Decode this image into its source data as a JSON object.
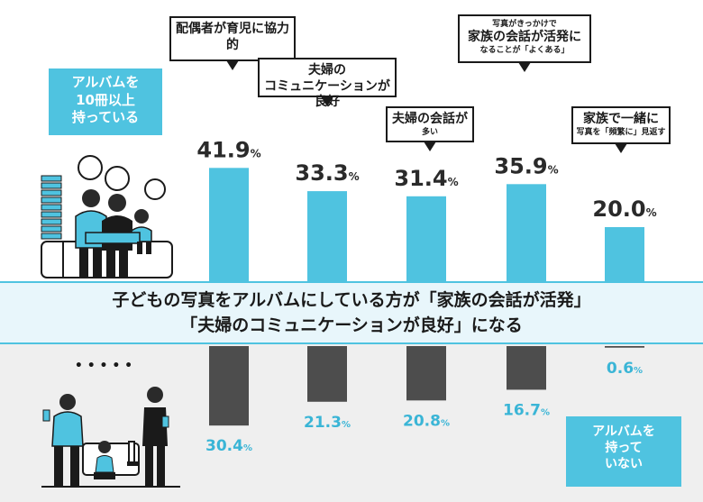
{
  "chart_data": {
    "type": "bar",
    "title": "子どもの写真をアルバムにしている方が「家族の会話が活発」「夫婦のコミュニケーションが良好」になる",
    "categories": [
      "配偶者が育児に協力的",
      "夫婦のコミュニケーションが良好",
      "夫婦の会話が多い",
      "写真がきっかけで家族の会話が活発になることが「よくある」",
      "家族で一緒に写真を「頻繁に」見返す"
    ],
    "series": [
      {
        "name": "アルバムを10冊以上持っている",
        "values": [
          41.9,
          33.3,
          31.4,
          35.9,
          20.0
        ],
        "labels": [
          "41.9",
          "33.3",
          "31.4",
          "35.9",
          "20.0"
        ]
      },
      {
        "name": "アルバムを持っていない",
        "values": [
          30.4,
          21.3,
          20.8,
          16.7,
          0.6
        ],
        "labels": [
          "30.4",
          "21.3",
          "20.8",
          "16.7",
          "0.6"
        ]
      }
    ],
    "unit": "%",
    "colors": {
      "top": "#4fc3e0",
      "bottom": "#4d4d4d",
      "bottom_label": "#3ab5d6"
    }
  },
  "callouts": [
    {
      "lines": [
        {
          "text": "配偶者が育児に協力的",
          "size": "big"
        }
      ]
    },
    {
      "lines": [
        {
          "text": "夫婦の",
          "size": "big"
        },
        {
          "text": "コミュニケーションが良好",
          "size": "big"
        }
      ]
    },
    {
      "lines": [
        {
          "text": "夫婦の会話が",
          "size": "big"
        },
        {
          "text": "多い",
          "size": "small"
        }
      ]
    },
    {
      "lines": [
        {
          "text": "写真がきっかけで",
          "size": "small"
        },
        {
          "text": "家族の会話が活発に",
          "size": "big"
        },
        {
          "text": "なることが「よくある」",
          "size": "small"
        }
      ]
    },
    {
      "lines": [
        {
          "text": "家族で一緒に",
          "size": "big"
        },
        {
          "text": "写真を「頻繁に」見返す",
          "size": "small"
        }
      ]
    }
  ],
  "tags": {
    "top": [
      "アルバムを",
      "10冊以上",
      "持っている"
    ],
    "bottom": [
      "アルバムを",
      "持って",
      "いない"
    ]
  },
  "headline": {
    "line1": "子どもの写真をアルバムにしている方が「家族の会話が活発」",
    "line2": "「夫婦のコミュニケーションが良好」になる"
  },
  "ellipsis": "• • • • •"
}
